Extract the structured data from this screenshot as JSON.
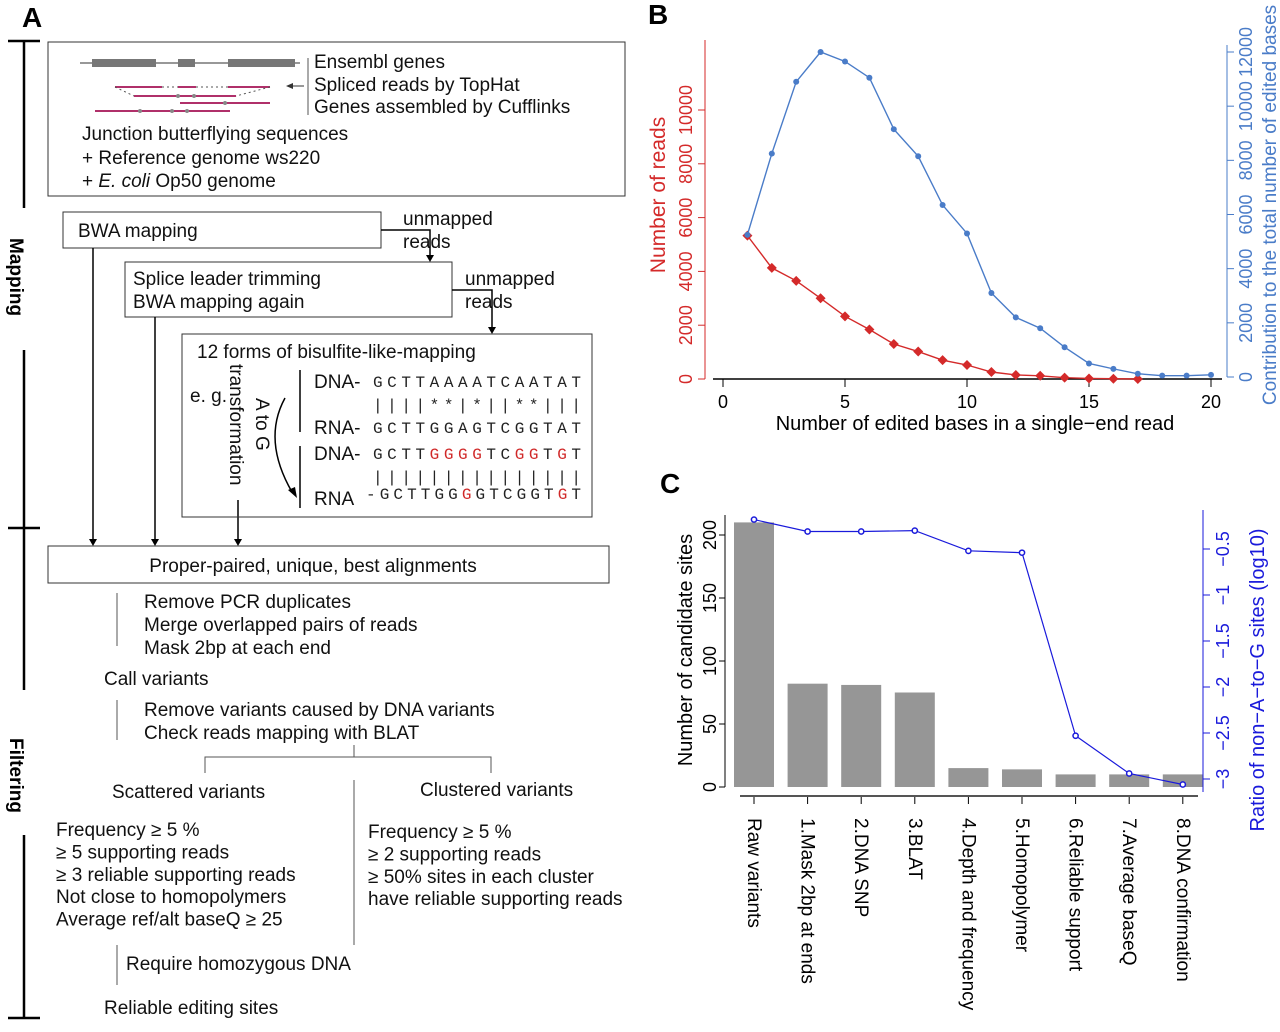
{
  "panel_a": {
    "label": "A",
    "side_labels": {
      "mapping": "Mapping",
      "filtering": "Filtering"
    },
    "box1": {
      "legend": [
        "Ensembl genes",
        "Spliced reads by TopHat",
        "Genes assembled by Cufflinks"
      ],
      "junction": "Junction  butterflying sequences",
      "reference": "+ Reference  genome ws220",
      "ecoli_prefix": "+ ",
      "ecoli_italic": "E. coli",
      "ecoli_suffix": " Op50 genome"
    },
    "bwa": "BWA  mapping",
    "unmapped1": [
      "unmapped",
      "reads"
    ],
    "splice": [
      "Splice  leader trimming",
      "BWA  mapping again"
    ],
    "unmapped2": [
      "unmapped",
      "reads"
    ],
    "bisulfite": {
      "title": "12 forms of bisulfite-like-mapping",
      "eg": "e. g.",
      "transformation": "transformation",
      "a_to_g": "A to G",
      "dna1_prefix": "DNA-",
      "dna1": "GCTTAAAATCAATAT",
      "match1": "||||**|*||**|||",
      "rna1_prefix": "RNA-",
      "rna1": "GCTTGGAGTCGGTAT",
      "dna2_prefix": "DNA-",
      "dna2": "GCTTGGGGTCGGTGT",
      "dna2_red": [
        4,
        5,
        6,
        7,
        10,
        11,
        13
      ],
      "match2": "|||||||||||||||",
      "rna2_prefix": "RNA",
      "rna2": "-GCTTGGGGTCGGTGT",
      "rna2_red": [
        7,
        14
      ],
      "highlight_color": "#d02828"
    },
    "proper": "Proper-paired, unique, best alignments",
    "step1": [
      "Remove  PCR  duplicates",
      "Merge  overlapped  pairs  of  reads",
      "Mask  2bp  at each end"
    ],
    "call_variants": "Call  variants",
    "step2": [
      "Remove variants caused by DNA variants",
      "Check reads mapping with BLAT"
    ],
    "scattered": {
      "title": "Scattered variants",
      "items": [
        "Frequency ≥ 5 %",
        "≥ 5 supporting reads",
        "≥ 3 reliable supporting reads",
        "Not close to homopolymers",
        "Average ref/alt baseQ ≥ 25"
      ]
    },
    "clustered": {
      "title": "Clustered  variants",
      "items": [
        "Frequency ≥ 5 %",
        "≥ 2  supporting reads",
        "≥ 50% sites in each cluster",
        "have reliable supporting reads"
      ]
    },
    "homozygous": "Require homozygous DNA",
    "reliable": "Reliable editing sites"
  },
  "chart_data": [
    {
      "panel": "B",
      "type": "line",
      "xlabel": "Number of edited bases in a single−end read",
      "xlim": [
        0,
        20
      ],
      "xticks": [
        "0",
        "5",
        "10",
        "15",
        "20"
      ],
      "y_left": {
        "label": "Number of reads",
        "color": "#d42a2a",
        "ylim": [
          0,
          10000
        ],
        "ticks": [
          "0",
          "2000",
          "4000",
          "6000",
          "8000",
          "10000"
        ]
      },
      "y_right": {
        "label": "Contribution to the total  number of edited bases",
        "color": "#4a7cc8",
        "ylim": [
          0,
          12000
        ],
        "ticks": [
          "0",
          "2000",
          "4000",
          "6000",
          "8000",
          "10000",
          "12000"
        ]
      },
      "series": [
        {
          "axis": "left",
          "marker": "diamond",
          "x": [
            1,
            2,
            3,
            4,
            5,
            6,
            7,
            8,
            9,
            10,
            11,
            12,
            13,
            14,
            15,
            16,
            17
          ],
          "y": [
            5330,
            4130,
            3650,
            3000,
            2330,
            1840,
            1300,
            1020,
            700,
            520,
            260,
            150,
            120,
            50,
            20,
            10,
            0
          ]
        },
        {
          "axis": "right",
          "marker": "circle",
          "x": [
            1,
            2,
            3,
            4,
            5,
            6,
            7,
            8,
            9,
            10,
            11,
            12,
            13,
            14,
            15,
            16,
            17,
            18,
            19,
            20
          ],
          "y": [
            5250,
            8250,
            10900,
            12000,
            11650,
            11050,
            9150,
            8150,
            6350,
            5300,
            3100,
            2200,
            1800,
            1100,
            500,
            300,
            120,
            50,
            50,
            80
          ]
        }
      ],
      "grid": false
    },
    {
      "panel": "C",
      "type": "bar",
      "categories": [
        "Raw variants",
        "1.Mask 2bp at ends",
        "2.DNA SNP",
        "3.BLAT",
        "4.Depth and frequency",
        "5.Homopolymer",
        "6.Reliable support",
        "7.Average baseQ",
        "8.DNA confirmation"
      ],
      "values": [
        210,
        82,
        81,
        75,
        15,
        14,
        10,
        10,
        10
      ],
      "bar_color": "#969696",
      "ylabel": "Number of candidate sites",
      "ylim": [
        0,
        210
      ],
      "yticks": [
        "0",
        "50",
        "100",
        "150",
        "200"
      ],
      "line_series": {
        "ylabel": "Ratio of non−A−to−G sites (log10)",
        "color": "#1a1adb",
        "values": [
          -0.18,
          -0.31,
          -0.31,
          -0.3,
          -0.52,
          -0.54,
          -2.53,
          -2.94,
          -3.06
        ],
        "yticks": [
          "−0.5",
          "−1",
          "−1.5",
          "−2",
          "−2.5",
          "−3"
        ]
      },
      "grid": false
    }
  ]
}
